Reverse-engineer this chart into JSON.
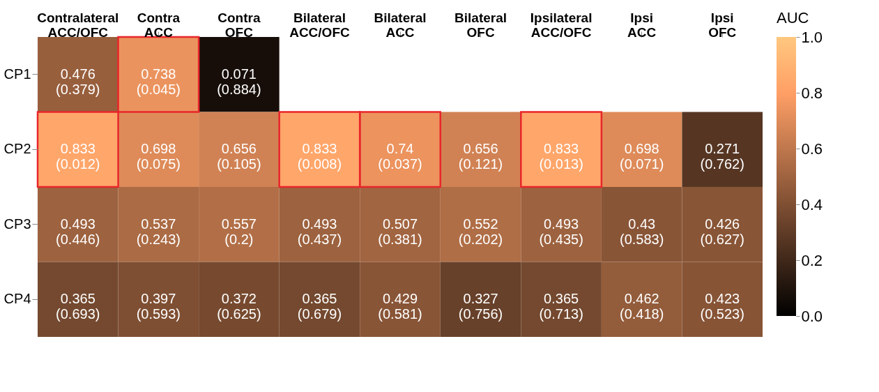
{
  "chart_data": {
    "type": "heatmap",
    "clabel": "AUC",
    "categories": [
      "Contralateral\nACC/OFC",
      "Contra\nACC",
      "Contra\nOFC",
      "Bilateral\nACC/OFC",
      "Bilateral\nACC",
      "Bilateral\nOFC",
      "Ipsilateral\nACC/OFC",
      "Ipsi\nACC",
      "Ipsi\nOFC"
    ],
    "y_categories": [
      "CP1",
      "CP2",
      "CP3",
      "CP4"
    ],
    "cells": [
      [
        0.476,
        0.738,
        0.071,
        null,
        null,
        null,
        null,
        null,
        null
      ],
      [
        0.833,
        0.698,
        0.656,
        0.833,
        0.74,
        0.656,
        0.833,
        0.698,
        0.271
      ],
      [
        0.493,
        0.537,
        0.557,
        0.493,
        0.507,
        0.552,
        0.493,
        0.43,
        0.426
      ],
      [
        0.365,
        0.397,
        0.372,
        0.365,
        0.429,
        0.327,
        0.365,
        0.462,
        0.423
      ]
    ],
    "cell_labels": [
      [
        "0.476\n(0.379)",
        "0.738\n(0.045)",
        "0.071\n(0.884)",
        null,
        null,
        null,
        null,
        null,
        null
      ],
      [
        "0.833\n(0.012)",
        "0.698\n(0.075)",
        "0.656\n(0.105)",
        "0.833\n(0.008)",
        "0.74\n(0.037)",
        "0.656\n(0.121)",
        "0.833\n(0.013)",
        "0.698\n(0.071)",
        "0.271\n(0.762)"
      ],
      [
        "0.493\n(0.446)",
        "0.537\n(0.243)",
        "0.557\n(0.2)",
        "0.493\n(0.437)",
        "0.507\n(0.381)",
        "0.552\n(0.202)",
        "0.493\n(0.435)",
        "0.43\n(0.583)",
        "0.426\n(0.627)"
      ],
      [
        "0.365\n(0.693)",
        "0.397\n(0.593)",
        "0.372\n(0.625)",
        "0.365\n(0.679)",
        "0.429\n(0.581)",
        "0.327\n(0.756)",
        "0.365\n(0.713)",
        "0.462\n(0.418)",
        "0.423\n(0.523)"
      ]
    ],
    "clim": [
      0,
      1
    ],
    "cticks": [
      {
        "value": 0,
        "label": "0.0"
      },
      0.2,
      0.4,
      0.6,
      0.8,
      {
        "value": 1,
        "label": "1.0"
      }
    ],
    "grid": false
  }
}
